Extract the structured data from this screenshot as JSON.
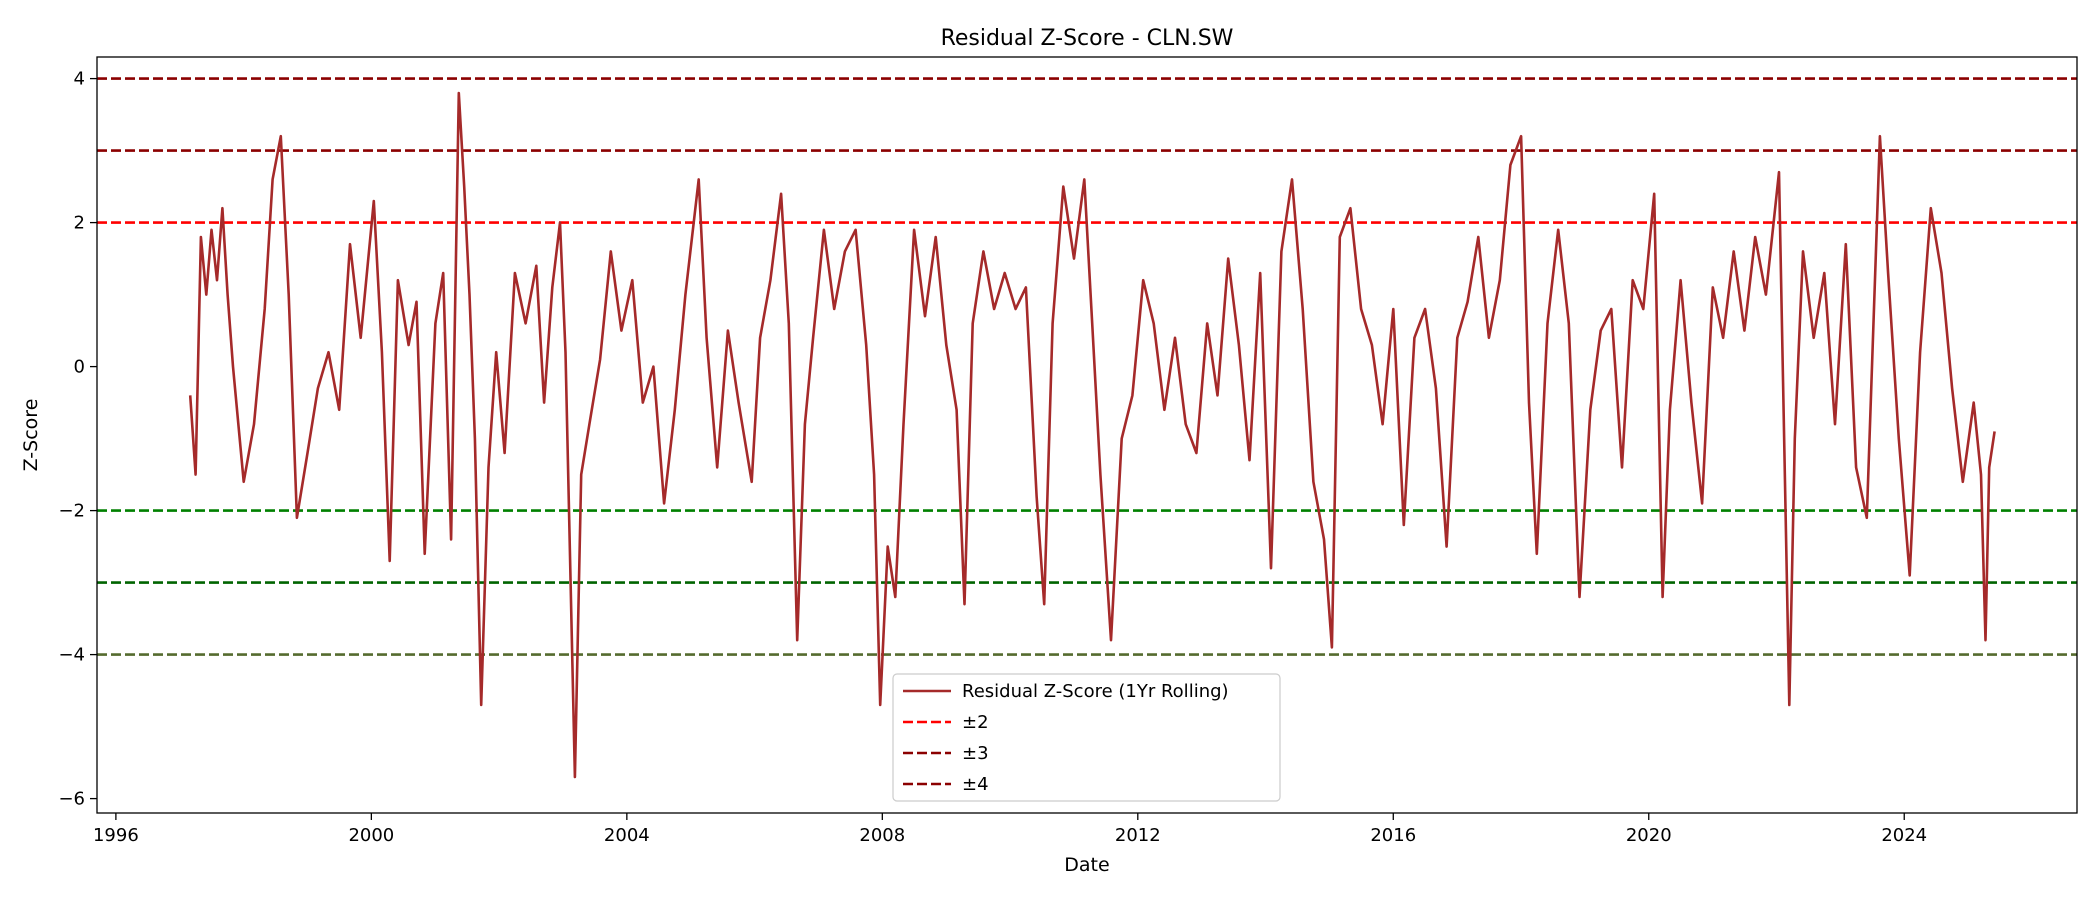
{
  "chart_data": {
    "type": "line",
    "title": "Residual Z-Score - CLN.SW",
    "xlabel": "Date",
    "ylabel": "Z-Score",
    "xlim": [
      "1995-09-15",
      "2026-09-15"
    ],
    "ylim": [
      -6.2,
      4.3
    ],
    "x_ticks": [
      "1996",
      "2000",
      "2004",
      "2008",
      "2012",
      "2016",
      "2020",
      "2024"
    ],
    "y_ticks": [
      -6,
      -4,
      -2,
      0,
      2,
      4
    ],
    "y_tick_labels": [
      "−6",
      "−4",
      "−2",
      "0",
      "2",
      "4"
    ],
    "grid": false,
    "legend_position": "lower-center",
    "series": [
      {
        "name": "Residual Z-Score (1Yr Rolling)",
        "color": "#a52a2a",
        "points": [
          [
            "1997-03-01",
            -0.4
          ],
          [
            "1997-04-01",
            -1.5
          ],
          [
            "1997-05-01",
            1.8
          ],
          [
            "1997-06-01",
            1.0
          ],
          [
            "1997-07-01",
            1.9
          ],
          [
            "1997-08-01",
            1.2
          ],
          [
            "1997-09-01",
            2.2
          ],
          [
            "1997-10-01",
            1.0
          ],
          [
            "1997-11-01",
            0.0
          ],
          [
            "1998-01-01",
            -1.6
          ],
          [
            "1998-03-01",
            -0.8
          ],
          [
            "1998-05-01",
            0.8
          ],
          [
            "1998-06-15",
            2.6
          ],
          [
            "1998-08-01",
            3.2
          ],
          [
            "1998-09-15",
            1.0
          ],
          [
            "1998-11-01",
            -2.1
          ],
          [
            "1999-01-01",
            -1.2
          ],
          [
            "1999-03-01",
            -0.3
          ],
          [
            "1999-05-01",
            0.2
          ],
          [
            "1999-07-01",
            -0.6
          ],
          [
            "1999-09-01",
            1.7
          ],
          [
            "1999-11-01",
            0.4
          ],
          [
            "2000-01-15",
            2.3
          ],
          [
            "2000-03-01",
            0.2
          ],
          [
            "2000-04-15",
            -2.7
          ],
          [
            "2000-06-01",
            1.2
          ],
          [
            "2000-08-01",
            0.3
          ],
          [
            "2000-09-15",
            0.9
          ],
          [
            "2000-11-01",
            -2.6
          ],
          [
            "2001-01-01",
            0.6
          ],
          [
            "2001-02-15",
            1.3
          ],
          [
            "2001-04-01",
            -2.4
          ],
          [
            "2001-05-15",
            3.8
          ],
          [
            "2001-06-15",
            2.5
          ],
          [
            "2001-07-15",
            1.0
          ],
          [
            "2001-08-15",
            -1.0
          ],
          [
            "2001-09-20",
            -4.7
          ],
          [
            "2001-11-01",
            -1.4
          ],
          [
            "2001-12-15",
            0.2
          ],
          [
            "2002-02-01",
            -1.2
          ],
          [
            "2002-04-01",
            1.3
          ],
          [
            "2002-06-01",
            0.6
          ],
          [
            "2002-08-01",
            1.4
          ],
          [
            "2002-09-15",
            -0.5
          ],
          [
            "2002-11-01",
            1.1
          ],
          [
            "2002-12-15",
            2.0
          ],
          [
            "2003-01-15",
            0.2
          ],
          [
            "2003-03-10",
            -5.7
          ],
          [
            "2003-04-15",
            -1.5
          ],
          [
            "2003-06-01",
            -0.8
          ],
          [
            "2003-08-01",
            0.1
          ],
          [
            "2003-10-01",
            1.6
          ],
          [
            "2003-12-01",
            0.5
          ],
          [
            "2004-02-01",
            1.2
          ],
          [
            "2004-04-01",
            -0.5
          ],
          [
            "2004-06-01",
            0.0
          ],
          [
            "2004-08-01",
            -1.9
          ],
          [
            "2004-10-01",
            -0.6
          ],
          [
            "2004-12-01",
            1.0
          ],
          [
            "2005-02-15",
            2.6
          ],
          [
            "2005-04-01",
            0.4
          ],
          [
            "2005-06-01",
            -1.4
          ],
          [
            "2005-08-01",
            0.5
          ],
          [
            "2005-10-01",
            -0.5
          ],
          [
            "2005-12-15",
            -1.6
          ],
          [
            "2006-02-01",
            0.4
          ],
          [
            "2006-04-01",
            1.2
          ],
          [
            "2006-06-01",
            2.4
          ],
          [
            "2006-07-15",
            0.6
          ],
          [
            "2006-09-01",
            -3.8
          ],
          [
            "2006-10-15",
            -0.8
          ],
          [
            "2006-12-01",
            0.4
          ],
          [
            "2007-02-01",
            1.9
          ],
          [
            "2007-04-01",
            0.8
          ],
          [
            "2007-06-01",
            1.6
          ],
          [
            "2007-08-01",
            1.9
          ],
          [
            "2007-10-01",
            0.3
          ],
          [
            "2007-11-15",
            -1.5
          ],
          [
            "2007-12-20",
            -4.7
          ],
          [
            "2008-02-01",
            -2.5
          ],
          [
            "2008-03-15",
            -3.2
          ],
          [
            "2008-05-01",
            -0.8
          ],
          [
            "2008-07-01",
            1.9
          ],
          [
            "2008-09-01",
            0.7
          ],
          [
            "2008-11-01",
            1.8
          ],
          [
            "2009-01-01",
            0.3
          ],
          [
            "2009-03-01",
            -0.6
          ],
          [
            "2009-04-15",
            -3.3
          ],
          [
            "2009-06-01",
            0.6
          ],
          [
            "2009-08-01",
            1.6
          ],
          [
            "2009-10-01",
            0.8
          ],
          [
            "2009-12-01",
            1.3
          ],
          [
            "2010-02-01",
            0.8
          ],
          [
            "2010-04-01",
            1.1
          ],
          [
            "2010-06-01",
            -1.8
          ],
          [
            "2010-07-15",
            -3.3
          ],
          [
            "2010-09-01",
            0.6
          ],
          [
            "2010-11-01",
            2.5
          ],
          [
            "2011-01-01",
            1.5
          ],
          [
            "2011-03-01",
            2.6
          ],
          [
            "2011-04-15",
            0.6
          ],
          [
            "2011-06-01",
            -1.5
          ],
          [
            "2011-08-01",
            -3.8
          ],
          [
            "2011-10-01",
            -1.0
          ],
          [
            "2011-12-01",
            -0.4
          ],
          [
            "2012-02-01",
            1.2
          ],
          [
            "2012-04-01",
            0.6
          ],
          [
            "2012-06-01",
            -0.6
          ],
          [
            "2012-08-01",
            0.4
          ],
          [
            "2012-10-01",
            -0.8
          ],
          [
            "2012-12-01",
            -1.2
          ],
          [
            "2013-02-01",
            0.6
          ],
          [
            "2013-04-01",
            -0.4
          ],
          [
            "2013-06-01",
            1.5
          ],
          [
            "2013-08-01",
            0.3
          ],
          [
            "2013-10-01",
            -1.3
          ],
          [
            "2013-12-01",
            1.3
          ],
          [
            "2014-02-01",
            -2.8
          ],
          [
            "2014-04-01",
            1.6
          ],
          [
            "2014-06-01",
            2.6
          ],
          [
            "2014-08-01",
            0.8
          ],
          [
            "2014-10-01",
            -1.6
          ],
          [
            "2014-12-01",
            -2.4
          ],
          [
            "2015-01-15",
            -3.9
          ],
          [
            "2015-03-01",
            1.8
          ],
          [
            "2015-05-01",
            2.2
          ],
          [
            "2015-07-01",
            0.8
          ],
          [
            "2015-09-01",
            0.3
          ],
          [
            "2015-11-01",
            -0.8
          ],
          [
            "2016-01-01",
            0.8
          ],
          [
            "2016-03-01",
            -2.2
          ],
          [
            "2016-05-01",
            0.4
          ],
          [
            "2016-07-01",
            0.8
          ],
          [
            "2016-09-01",
            -0.3
          ],
          [
            "2016-11-01",
            -2.5
          ],
          [
            "2017-01-01",
            0.4
          ],
          [
            "2017-03-01",
            0.9
          ],
          [
            "2017-05-01",
            1.8
          ],
          [
            "2017-07-01",
            0.4
          ],
          [
            "2017-09-01",
            1.2
          ],
          [
            "2017-11-01",
            2.8
          ],
          [
            "2018-01-01",
            3.2
          ],
          [
            "2018-02-15",
            -0.5
          ],
          [
            "2018-04-01",
            -2.6
          ],
          [
            "2018-06-01",
            0.6
          ],
          [
            "2018-08-01",
            1.9
          ],
          [
            "2018-10-01",
            0.6
          ],
          [
            "2018-12-01",
            -3.2
          ],
          [
            "2019-02-01",
            -0.6
          ],
          [
            "2019-04-01",
            0.5
          ],
          [
            "2019-06-01",
            0.8
          ],
          [
            "2019-08-01",
            -1.4
          ],
          [
            "2019-10-01",
            1.2
          ],
          [
            "2019-12-01",
            0.8
          ],
          [
            "2020-02-01",
            2.4
          ],
          [
            "2020-03-20",
            -3.2
          ],
          [
            "2020-05-01",
            -0.6
          ],
          [
            "2020-07-01",
            1.2
          ],
          [
            "2020-09-01",
            -0.5
          ],
          [
            "2020-11-01",
            -1.9
          ],
          [
            "2021-01-01",
            1.1
          ],
          [
            "2021-03-01",
            0.4
          ],
          [
            "2021-05-01",
            1.6
          ],
          [
            "2021-07-01",
            0.5
          ],
          [
            "2021-09-01",
            1.8
          ],
          [
            "2021-11-01",
            1.0
          ],
          [
            "2022-01-15",
            2.7
          ],
          [
            "2022-03-15",
            -4.7
          ],
          [
            "2022-04-15",
            -1.0
          ],
          [
            "2022-06-01",
            1.6
          ],
          [
            "2022-08-01",
            0.4
          ],
          [
            "2022-10-01",
            1.3
          ],
          [
            "2022-12-01",
            -0.8
          ],
          [
            "2023-02-01",
            1.7
          ],
          [
            "2023-04-01",
            -1.4
          ],
          [
            "2023-06-01",
            -2.1
          ],
          [
            "2023-08-15",
            3.2
          ],
          [
            "2023-10-01",
            1.3
          ],
          [
            "2023-12-01",
            -1.0
          ],
          [
            "2024-02-01",
            -2.9
          ],
          [
            "2024-04-01",
            0.2
          ],
          [
            "2024-06-01",
            2.2
          ],
          [
            "2024-08-01",
            1.3
          ],
          [
            "2024-10-01",
            -0.3
          ],
          [
            "2024-12-01",
            -1.6
          ],
          [
            "2025-02-01",
            -0.5
          ],
          [
            "2025-03-15",
            -1.5
          ],
          [
            "2025-04-10",
            -3.8
          ],
          [
            "2025-05-01",
            -1.4
          ],
          [
            "2025-06-01",
            -0.9
          ]
        ]
      }
    ],
    "reference_lines": [
      {
        "y": 2,
        "color": "#ff0000",
        "legend": "±2"
      },
      {
        "y": 3,
        "color": "#8b0000",
        "legend": "±3"
      },
      {
        "y": 4,
        "color": "#8b0000",
        "legend": "±4"
      },
      {
        "y": -2,
        "color": "#008000"
      },
      {
        "y": -3,
        "color": "#006400"
      },
      {
        "y": -4,
        "color": "#556b2f"
      }
    ],
    "legend": [
      {
        "label": "Residual Z-Score (1Yr Rolling)",
        "color": "#a52a2a",
        "style": "solid"
      },
      {
        "label": "±2",
        "color": "#ff0000",
        "style": "dashed"
      },
      {
        "label": "±3",
        "color": "#8b0000",
        "style": "dashed"
      },
      {
        "label": "±4",
        "color": "#8b0000",
        "style": "dashed"
      }
    ]
  }
}
